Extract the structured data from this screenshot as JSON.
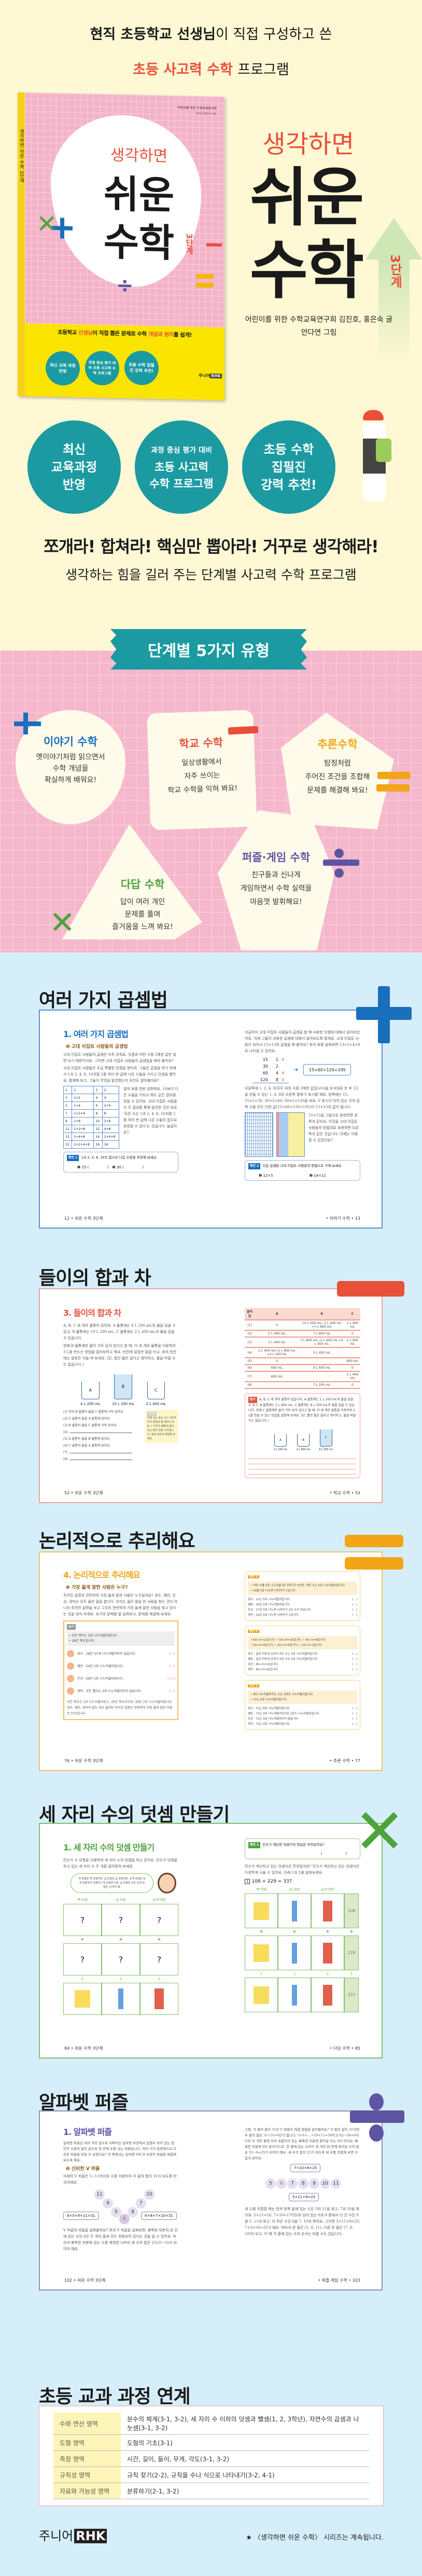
{
  "colors": {
    "cream": "#fef8d4",
    "pink": "#f5b7cb",
    "sky": "#d6eefa",
    "teal": "#1b9aa1",
    "red": "#e8503a",
    "blue": "#1a6fbd",
    "orange": "#f2a516",
    "green": "#4ea33c",
    "purple": "#5d55a3"
  },
  "header": {
    "line1_bold": "현직 초등학교 선생님",
    "line1_rest": "이 직접 구성하고 쓴",
    "line2_accent": "초등 사고력 수학",
    "line2_rest": "프로그램"
  },
  "cover": {
    "org": "어린이를 위한 수학교육연구회",
    "authors": "김진호 홍은숙 지음",
    "title1": "생각하면",
    "title2": "쉬운",
    "title3": "수학",
    "level": "3단계",
    "spine": "생각하면 쉬운 수학 3단계",
    "tagline_a": "초등학교 ",
    "tagline_b": "선생님",
    "tagline_c": "이 직접 뽑은 문제로 수학 ",
    "tagline_d": "개념과 원리",
    "tagline_e": "를 쉽게!",
    "badges": [
      "최신 교육 과정 반영",
      "과정 중심 평가 대비 초등 사고력 수학 프로그램",
      "초등 수학 집필진 강력 추천!"
    ],
    "publisher": "주니어",
    "publisher_mark": "RHK"
  },
  "book": {
    "title1": "생각하면",
    "title2": "쉬운",
    "title3": "수학",
    "level": "3단계",
    "credit1": "어린이를 위한 수학교육연구회 김진호, 홍은숙 글",
    "credit2": "안다연 그림"
  },
  "features": [
    {
      "lines": [
        "최신",
        "교육과정",
        "반영"
      ]
    },
    {
      "small": "과정 중심 평가 대비",
      "lines": [
        "초등 사고력",
        "수학 프로그램"
      ]
    },
    {
      "lines": [
        "초등 수학",
        "집필진",
        "강력 추천!"
      ]
    }
  ],
  "slogan": "쪼개라! 합쳐라! 핵심만 뽑아라! 거꾸로 생각해라!",
  "subslogan": "생각하는 힘을 길러 주는 단계별 사고력 수학 프로그램",
  "types": {
    "banner": "단계별 5가지 유형",
    "cards": [
      {
        "title": "이야기 수학",
        "body": [
          "옛이야기처럼 읽으면서",
          "수학 개념을",
          "확실하게 배워요!"
        ]
      },
      {
        "title": "학교 수학",
        "body": [
          "일상생활에서",
          "자주 쓰이는",
          "학교 수학을 익혀 봐요!"
        ]
      },
      {
        "title": "추론수학",
        "body": [
          "탐정처럼",
          "주어진 조건을 조합해",
          "문제를 해결해 봐요!"
        ]
      },
      {
        "title": "다답 수학",
        "body": [
          "답이 여러 개인",
          "문제를 풀며",
          "즐거움을 느껴 봐요!"
        ]
      },
      {
        "title": "퍼즐·게임 수학",
        "body": [
          "친구들과 신나게",
          "게임하면서 수학 실력을",
          "마음껏 발휘해요!"
        ]
      }
    ]
  },
  "s1": {
    "title": "여러 가지 곱셈법",
    "heading": "1. 여러 가지 곱셈법",
    "sub": "❶ 고대 이집트 사람들의 곱셈법",
    "p1": "고대 이집트 사람들의 곱셈은 아주 쉬워요. 덧셈과 어떤 수를 2배한 값만 알면 되기 때문이지요. 그러면 고대 이집트 사람들의 곱셈법을 배워 볼까요?",
    "p2": "고대 이집트 사람들은 조금 특별한 덧셈을 했어요. 그들은 곱셈을 하기 위해서 1과 2, 4, 8, 16처럼 2를 여러 번 곱해 나온 수들을 가지고 덧셈을 했어요. 함께해 보고, 그들이 무엇을 발견했는지 우리도 알아볼까요?",
    "p3": "앞의 표를 한번 살펴봐요. 16보다 더 큰 수들을 가지고 해도 같은 결과를 얻을 수 있어요. 고대 이집트 사람들이 이 결과를 통해 발견한 것은 바로 '모든 수는 1과 2, 4, 8, 16처럼 2를 여러 번 곱해 나온 수들의 합으로 표현할 수 있다'는 것입니다. 놀랍지요?",
    "table": [
      [
        "1",
        "1",
        "2",
        "2"
      ],
      [
        "3",
        "1+2",
        "4",
        "4"
      ],
      [
        "5",
        "1+4",
        "6",
        "2+4"
      ],
      [
        "7",
        "1+2+4",
        "8",
        "8"
      ],
      [
        "9",
        "1+8",
        "10",
        "2+8"
      ],
      [
        "11",
        "1+2+8",
        "12",
        "4+8"
      ],
      [
        "13",
        "1+4+8",
        "14",
        "2+4+8"
      ],
      [
        "15",
        "1+2+4+8",
        "16",
        "16"
      ]
    ],
    "ex1_tag": "확인 1",
    "ex1": "1과 2, 4, 8, 16의 합으로 다음 수들을 표현해 보세요.",
    "ex1_a": "❶ 25 (                )",
    "ex1_b": "❷ 30 (                )",
    "p4": "지금까지 고대 이집트 사람들이 곱셈을 할 때 사용한 덧셈에 대해서 알아보았어요. 이제 그들이 사용한 곱셈에 대해서 알아보도록 할게요. 고대 이집트 사람이 되어서 15×13의 곱셈을 해 볼까요? 위의 표를 살펴보면 13=1+4+8로 나타낼 수 있어요.",
    "calc": [
      [
        "15",
        "1",
        "V"
      ],
      [
        "30",
        "2",
        ""
      ],
      [
        "60",
        "4",
        "V"
      ],
      [
        "120",
        "8",
        "V"
      ]
    ],
    "calc_result": "15+60+120=195",
    "p5": "오른쪽에 1, 2, 4, 8(모두 위의 수를 2배한 값입니다)을 순서대로 쓴 후 13을 만들 수 있는 1, 4, 8의 오른쪽 옆에 V 표시를 해요. 왼쪽에는 15, 15×2=30, 30×2=60, 60×2=120을 써요. V 표시가 되어 있는 곳의 왼쪽 수를 모두 더한 값(15+60+120=195)이 15×13의 값이 됩니다.",
    "p6": "15×13을 그림으로 표현하면 왼쪽과 같지요. 이것을 고대 이집트 사람들의 방법대로 표현하면 오른쪽과 같은 것입니다. 이제는 이해할 수 있겠지요?",
    "ex2_tag": "확인 2",
    "ex2": "다음 곱셈을 고대 이집트 사람들의 방법으로 구해 보세요.",
    "ex2_a": "❶ 12×5",
    "ex2_b": "❷ 14×11",
    "foot_l": "12 • 쉬운 수학 3단계",
    "foot_r": "• 이야기 수학 • 13"
  },
  "s2": {
    "title": "들이의 합과 차",
    "heading": "3. 들이의 합과 차",
    "p1": "A, B, C 세 개의 물통이 있어요. A 물통에는 4 L 200 mL의 물을 담을 수 있고, B 물통에는 10 L 200 mL, C 물통에는 2 L 400 mL의 물을 담을 수 있습니다.",
    "p2": "현재 B 물통에만 물이 가득 담겨 있다고 할 때, 이 세 개의 물통을 이용하여 3 L를 만드는 방법을 알아보려고 해요. 빈칸에 알맞은 말을 쓰고, 표의 빈칸에는 알맞은 식을 써 보세요. (단, 흘린 물은 없다고 생각하고, 물을 버릴 수는 없습니다.)",
    "buckets": [
      {
        "name": "A",
        "cap": "4 L 200 mL"
      },
      {
        "name": "B",
        "cap": "10 L 200 mL"
      },
      {
        "name": "C",
        "cap": "2 L 400 mL"
      }
    ],
    "steps": [
      "(1) 먼저 B 물통의 물을 C 물통에 가득 담아요.",
      "(2) C 물통의 물을 A 물통에 담아요.",
      "(3) B 물통의 물을 C 물통에 가득 담아요.",
      "(4)",
      "(5) A 물통의 물을 B 물통에 담아요.",
      "(6) C 물통의 물을 A 물통에 담아요.",
      "(7)",
      "(8)"
    ],
    "hint_tag": "도움말",
    "hint": "위에 있는 표는 (1)~(8)까지의 활동을 할 때마다 A, B, C 각각의 물통에 들어 있는 물의 양을 나타냅니다. 표를 보면서 해결해 보세요.",
    "table": [
      [
        "물의 양",
        "A",
        "B",
        "C"
      ],
      [
        "(1)",
        "0",
        "10 L 200 mL−2 L 400 mL =7 L 800 mL",
        "2 L 400 mL"
      ],
      [
        "(2)",
        "2 L 400 mL",
        "7 L 800 mL",
        "0"
      ],
      [
        "(3)",
        "2 L 400 mL",
        "7 L 800 mL−2 L 400 mL =5 L 400 mL",
        "2 L 400 mL"
      ],
      [
        "(4)",
        "2 L 400 mL+1 L 800 mL =4 L 200 mL",
        "5 L 400 mL",
        ""
      ],
      [
        "(5)",
        "0",
        "",
        "600 mL"
      ],
      [
        "(6)",
        "600 mL",
        "9 L 600 mL",
        "0"
      ],
      [
        "(7)",
        "600 mL",
        "",
        "2 L 400 mL"
      ],
      [
        "(8)",
        "",
        "7 L 200 mL",
        "0"
      ]
    ],
    "ex_tag": "탐구",
    "ex": "A, B, C 세 개의 물통이 있습니다. A 물통에는 1 L 200 mL의 물을 담을 수 있고, B 물통에는 2 L 800 mL, C 물통에는 6 L 500 mL의 물을 담을 수 있습니다. 현재 C 물통에만 물이 가득 담겨 있다고 할 때, 이 세 개의 물통을 이용하여 2 L를 만들 수 있는 방법을 설명해 보세요. (단, 흘린 물은 없다고 생각하고, 물을 버릴 수는 없습니다.)",
    "ex_buckets": [
      {
        "name": "A",
        "cap": "1 L 200 mL"
      },
      {
        "name": "B",
        "cap": "2 L 800 mL"
      },
      {
        "name": "C",
        "cap": "6 L 500 mL"
      }
    ],
    "foot_l": "52 • 쉬운 수학 3단계",
    "foot_r": "• 학교 수학 • 53"
  },
  "s3": {
    "title": "논리적으로 추리해요",
    "heading": "4. 논리적으로 추리해요",
    "sub": "❶ 가장 옳게 말한 사람은 누구?",
    "p1": "주어진 설명과 관련하여 가장 옳게 말한 사람은 누구일까요? 경수, 혜린, 은선, 경미는 모두 옳은 말을 합니다. 우리는 옳은 말을 한 사람을 찾는 것이 아니라 주어진 설명을 보고 그것과 관련하여 가장 옳게 말한 사람을 찾고 있다는 것을 잊지 마세요. 보기의 문제를 잘 살펴보고, 문제를 해결해 보세요.",
    "example_tag": "보기",
    "example_facts": [
      "• 모든 짝수는 2로 나누어떨어집니다.",
      "• 28은 짝수입니다."
    ],
    "example_people": [
      {
        "say": "경수 : 28은 3으로 나누어떨어지지 않습니다.",
        "mark": "(   )"
      },
      {
        "say": "혜린 : 20은 2로 나누어떨어집니다.",
        "mark": "(   )"
      },
      {
        "say": "은선 : 28은 2로 나누어떨어집니다.",
        "mark": "( ○ )"
      },
      {
        "say": "경미 : 모든 홀수는 2로 나누어떨어지지 않습니다.",
        "mark": "(   )"
      }
    ],
    "p2": "모든 짝수는 2로 나누어떨어지고, 28은 짝수이므로, 28은 2로 나누어떨어집니다. 경수, 혜린, 경미의 말도 모두 옳지만 주어진 설명과 관련하여 가장 옳게 말한 사람은 은선입니다.",
    "checks": [
      {
        "tag": "확인 1",
        "facts": [
          "• 어떤 수를 5로 나누었을 때 나머지가 0이면, 어떤 수는 5로 나누어떨어집니다.",
          "• 16을 5로 나누면 나머지가 1입니다."
        ],
        "people": [
          "경수 : 15는 5로 나누어떨어집니다.",
          "혜린 : 20은 5로 나누어떨어집니다.",
          "은선 : 17은 5로 나누면 나머지가 2인 수가 아닙니다.",
          "경미 : 16은 5로 나누면 나머지가 1입니다."
        ]
      },
      {
        "tag": "확인 2",
        "facts": [
          "• 60÷5=12입니다.   • 50÷5=10입니다.   • 40÷5=8입니다.",
          "• 30÷5=6입니다.   • 20÷5=4입니다.   • 10÷5=2입니다."
        ],
        "people": [
          "경수 : 일의 자리의 숫자가 0인 수는 5로 나누어떨어집니다.",
          "혜린 : 일의 자리의 숫자가 0인 수도 5로 나누어떨어집니다.",
          "은선 : 60÷5=11입니다.",
          "경미 : 80÷5=16입니다."
        ]
      },
      {
        "tag": "확인 3",
        "facts": [
          "• 8로 나누어떨어지는 수는 4로도 나누어떨어집니다.",
          "• 72는 8로 나누어떨어집니다."
        ],
        "people": [
          "경수 : 72는 8로 나누어떨어집니다.",
          "혜린 : 72는 4로 나누어떨어지므로 2로도 나누어떨어집니다.",
          "은선 : 72는 5로 나누어떨어지지 않습니다.",
          "경미 : 72는 4로 나누어떨어집니다."
        ]
      }
    ],
    "mark": "(   )",
    "foot_l": "76 • 쉬운 수학 3단계",
    "foot_r": "• 추론 수학 • 77"
  },
  "s4": {
    "title": "세 자리 수의 덧셈 만들기",
    "heading": "1. 세 자리 수의 덧셈 만들기",
    "p1": "민수가 수 모형을 이용하여 세 자리 수의 덧셈을 하고 있어요. 민수가 덧셈을 하고 있는 세 자리 수 두 개를 알아맞혀 보세요.",
    "bubble": "백 모형은 백 모형끼리, 십 모형은 십 모형끼리, 낱개 모형은 낱개 모형끼리 더했더니 백 모형은 3개, 십 모형은 2개, 낱개 모형은 17개가 돼.",
    "cols": [
      "(백 모형)",
      "(십 모형)",
      "(낱개 모형)"
    ],
    "q": "?",
    "plus": "+",
    "arrow": "↓",
    "ex_tag": "확인 1",
    "ex": "민수가 계산한 덧셈식의 정답은 무엇일까요?",
    "ex_blank": "(                    )",
    "p2": "민수가 계산하고 있는 덧셈식은 무엇일까요? 민수가 계산하고 있는 덧셈식은 다양하게 나올 수 있어요. 아래 1과 2를 살펴보세요.",
    "eq_num": "1",
    "eq": "108 + 229 = 337",
    "values": [
      "108",
      "229",
      "337"
    ],
    "foot_l": "84 • 쉬운 수학 3단계",
    "foot_r": "• 다답 수학 • 85"
  },
  "s5": {
    "title": "알파벳 퍼즐",
    "heading": "1. 알파벳 퍼즐",
    "p1": "알파벳 퍼즐은 여러 개의 원으로 이루어진 알파벳 모양에서 일렬로 되어 있는 원 안의 수들의 합이 같도록 원 안에 수를 넣는 퍼즐입니다. 여러 가지 알파벳으로 다양한 퍼즐을 만들 수 있겠지요? 이 책에서는 알파벳 V와 H 모양의 퍼즐을 해결해 보도록 해요.",
    "sub": "❶ 신비한 V 퍼즐",
    "p2": "아래의 V 퍼즐은 5~11까지의 수를 이용하여 각 줄의 합이 31이 되도록 한 것이에요.",
    "v": [
      "11",
      "9",
      "5",
      "6",
      "8",
      "7",
      "10"
    ],
    "v_left": "6+5+9+11=31",
    "v_right": "6+8+7+10=31",
    "p3": "V 퍼즐의 비밀을 살펴볼까요? 위의 V 퍼즐을 살펴보면, 뾰족한 부분의 원 안에 있는 수인 6은 두 개의 줄에 모두 포함되어 있다는 것을 알 수 있어요. 따라서 뾰족한 부분에 있는 수를 제외한 나머지 세 수의 합은 25(31−6)가 되어야 해요.",
    "p4": "그럼, 각 줄의 합이 31인 V 퍼즐의 해결 방법을 알아볼까요? 각 줄의 합이 31이면 두 줄의 합은 31+31=62가 됩니다. 5+6+…+10+11=56이고 62−56=6이므로 두 개의 줄에 모두 포함되어 있는 뾰족한 부분에 들어갈 수는 6이 되지요. 뾰족한 부분에 6이 들어가므로, 한 줄에 있는 나머지 세 개의 원 안에 들어갈 수의 합은 31−6=25가 되어야 해요. 세 수의 합이 25가 되도록 세 수를 조합해 보면 다음과 같아요.",
    "row": [
      "5",
      "6",
      "7",
      "8",
      "9",
      "10",
      "11"
    ],
    "top": "7+10+8=25",
    "bottom": "5+11+9=25",
    "p5": "세 수를 조합할 때는 먼저 양쪽 끝에 있는 수인 5와 11을 묶고, 7과 10을 묶어요. 5+11=16, 7+10=17이므로 남아 있는 8과 9 중에서 더 큰 수인 9를 5, 11과 묶고, 더 작은 수인 8을 7, 10과 묶어요. 그러면 5+11+9=25, 7+10+8=25가 돼요. 따라서 한 줄은 (5, 9, 11), 다른 한 줄은 (7, 8, 10)이 되고, 이 때 각 줄에 있는 수의 순서는 바뀔 수도 있답니다.",
    "foot_l": "102 • 쉬운 수학 3단계",
    "foot_r": "• 퍼즐·게임 수학 • 103"
  },
  "curriculum": {
    "title": "초등 교과 과정 연계",
    "rows": [
      {
        "area": "수와 연산 영역",
        "content": "분수의 체계(3-1, 3-2), 세 자리 수 이하의 덧셈과 뺄셈(1, 2, 3학년), 자연수의 곱셈과 나눗셈(3-1, 3-2)"
      },
      {
        "area": "도형 영역",
        "content": "도형의 기초(3-1)"
      },
      {
        "area": "측정 영역",
        "content": "시간, 길이, 들이, 무게, 각도(3-1, 3-2)"
      },
      {
        "area": "규칙성 영역",
        "content": "규칙 찾기(2-2), 규칙을 수나 식으로 나타내기(3-2, 4-1)"
      },
      {
        "area": "자료와 가능성 영역",
        "content": "분류하기(2-1, 3-2)"
      }
    ]
  },
  "footer": {
    "publisher": "주니어",
    "publisher_mark": "RHK",
    "note": "★ 〈생각하면 쉬운 수학〉 시리즈는 계속됩니다."
  }
}
